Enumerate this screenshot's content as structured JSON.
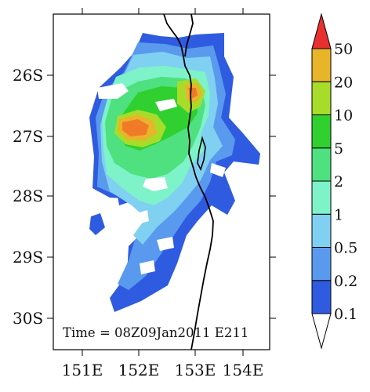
{
  "map": {
    "time_label": "Time = 08Z09Jan2011 E211",
    "lat_ticks": [
      "26S",
      "27S",
      "28S",
      "29S",
      "30S"
    ],
    "lon_ticks": [
      "151E",
      "152E",
      "153E",
      "154E"
    ],
    "lat_range": [
      -30.5,
      -25.35
    ],
    "lon_range": [
      150.3,
      155.0
    ]
  },
  "colorbar": {
    "labels": [
      "0.1",
      "0.2",
      "0.5",
      "1",
      "2",
      "5",
      "10",
      "20",
      "50"
    ],
    "colors": [
      "#2f5be0",
      "#5a9aee",
      "#80d0f2",
      "#7ef2c8",
      "#4fe080",
      "#2fd02f",
      "#a8dc2a",
      "#e8b42a",
      "#f07a28",
      "#e83030"
    ],
    "under_color": "#ffffff"
  }
}
